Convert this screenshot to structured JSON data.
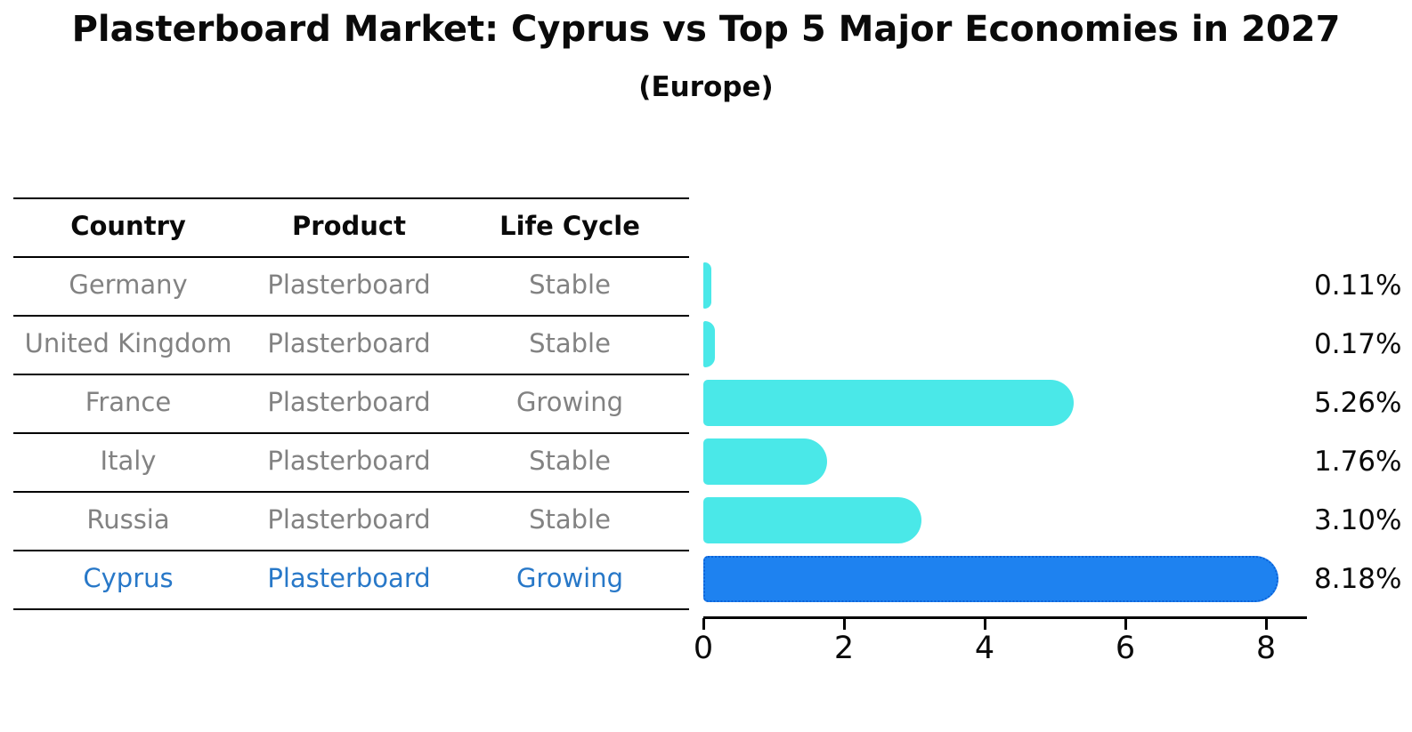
{
  "page": {
    "title": "Plasterboard Market: Cyprus vs Top 5 Major Economies in 2027",
    "subtitle": "(Europe)"
  },
  "table": {
    "headers": {
      "country": "Country",
      "product": "Product",
      "life_cycle": "Life Cycle"
    },
    "rows": [
      {
        "country": "Germany",
        "product": "Plasterboard",
        "life_cycle": "Stable"
      },
      {
        "country": "United Kingdom",
        "product": "Plasterboard",
        "life_cycle": "Stable"
      },
      {
        "country": "France",
        "product": "Plasterboard",
        "life_cycle": "Growing"
      },
      {
        "country": "Italy",
        "product": "Plasterboard",
        "life_cycle": "Stable"
      },
      {
        "country": "Russia",
        "product": "Plasterboard",
        "life_cycle": "Stable"
      },
      {
        "country": "Cyprus",
        "product": "Plasterboard",
        "life_cycle": "Growing"
      }
    ],
    "highlight_row": "Cyprus"
  },
  "chart_data": {
    "type": "bar",
    "orientation": "horizontal",
    "title": "Plasterboard Market: Cyprus vs Top 5 Major Economies in 2027",
    "subtitle": "(Europe)",
    "categories": [
      "Germany",
      "United Kingdom",
      "France",
      "Italy",
      "Russia",
      "Cyprus"
    ],
    "values": [
      0.11,
      0.17,
      5.26,
      1.76,
      3.1,
      8.18
    ],
    "value_labels": [
      "0.11%",
      "0.17%",
      "5.26%",
      "1.76%",
      "3.10%",
      "8.18%"
    ],
    "xlim": [
      0,
      8.57
    ],
    "xticks": [
      0,
      2,
      4,
      6,
      8
    ],
    "grid": false,
    "legend": false,
    "bar_color": "#4ae8e8",
    "highlight_color": "#1e82f0",
    "highlight_border_color": "#0c62d8",
    "highlight_index": 5
  },
  "colors": {
    "title_text": "#0a0a0a",
    "row_text": "#828282",
    "highlight_text": "#2878c8",
    "axis": "#000000"
  }
}
